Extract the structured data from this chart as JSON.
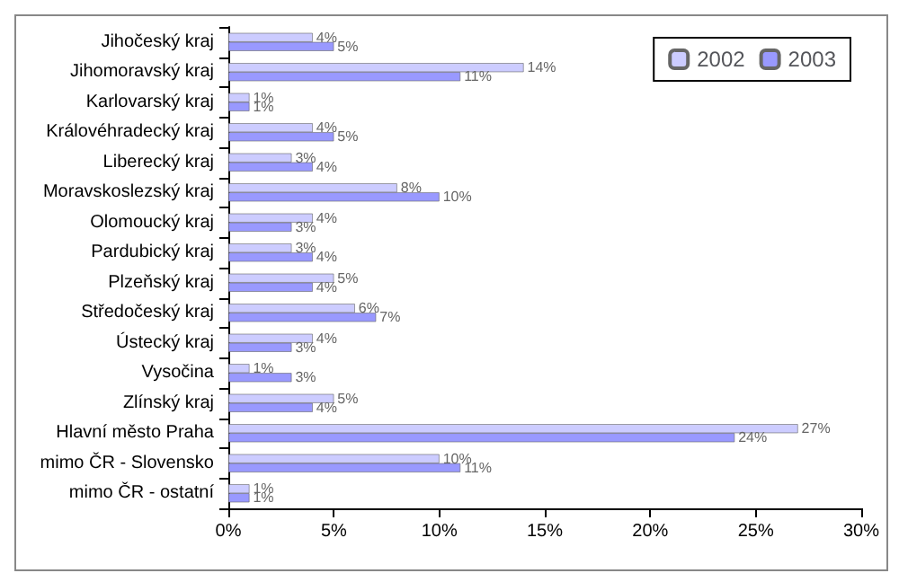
{
  "chart_data": {
    "type": "bar",
    "orientation": "horizontal",
    "categories": [
      "Jihočeský kraj",
      "Jihomoravský kraj",
      "Karlovarský kraj",
      "Královéhradecký kraj",
      "Liberecký kraj",
      "Moravskoslezský kraj",
      "Olomoucký kraj",
      "Pardubický kraj",
      "Plzeňský kraj",
      "Středočeský kraj",
      "Ústecký kraj",
      "Vysočina",
      "Zlínský kraj",
      "Hlavní město Praha",
      "mimo ČR - Slovensko",
      "mimo ČR - ostatní"
    ],
    "series": [
      {
        "name": "2002",
        "color": "#ccccff",
        "values": [
          4,
          14,
          1,
          4,
          3,
          8,
          4,
          3,
          5,
          6,
          4,
          1,
          5,
          27,
          10,
          1
        ],
        "value_labels": [
          "4%",
          "14%",
          "1%",
          "4%",
          "3%",
          "8%",
          "4%",
          "3%",
          "5%",
          "6%",
          "4%",
          "1%",
          "5%",
          "27%",
          "10%",
          "1%"
        ]
      },
      {
        "name": "2003",
        "color": "#9999ff",
        "values": [
          5,
          11,
          1,
          5,
          4,
          10,
          3,
          4,
          4,
          7,
          3,
          3,
          4,
          24,
          11,
          1
        ],
        "value_labels": [
          "5%",
          "11%",
          "1%",
          "5%",
          "4%",
          "10%",
          "3%",
          "4%",
          "4%",
          "7%",
          "3%",
          "3%",
          "4%",
          "24%",
          "11%",
          "1%"
        ]
      }
    ],
    "xlim": [
      0,
      30
    ],
    "xticks": [
      {
        "value": 0,
        "label": "0%"
      },
      {
        "value": 5,
        "label": "5%"
      },
      {
        "value": 10,
        "label": "10%"
      },
      {
        "value": 15,
        "label": "15%"
      },
      {
        "value": 20,
        "label": "20%"
      },
      {
        "value": 25,
        "label": "25%"
      },
      {
        "value": 30,
        "label": "30%"
      }
    ],
    "grid": false,
    "legend": "top right"
  }
}
